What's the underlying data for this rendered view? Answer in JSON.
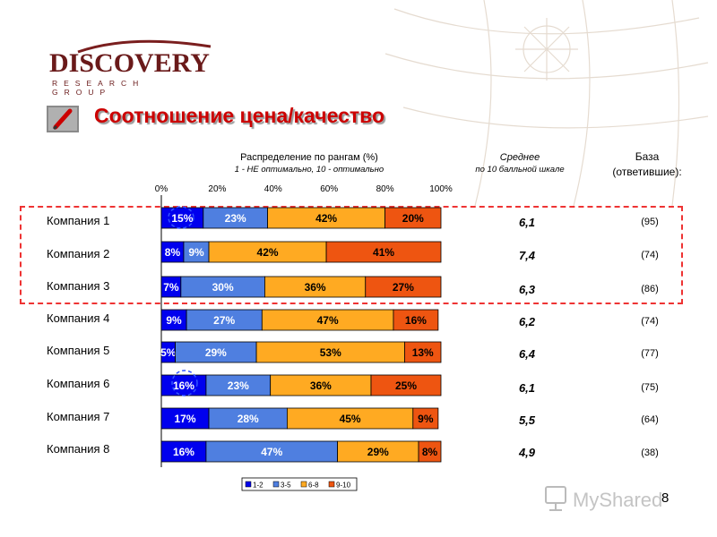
{
  "logo": {
    "word": "DISCOVERY",
    "sub": "RESEARCH GROUP"
  },
  "title": "Соотношение цена/качество",
  "header": {
    "dist_title": "Распределение по рангам (%)",
    "dist_sub": "1 - НЕ оптимально, 10 - оптимально",
    "avg_title": "Среднее",
    "avg_sub": "по 10 балльной шкале",
    "base_line1": "База",
    "base_line2": "(ответившие):"
  },
  "page_number": "8",
  "watermark": "MyShared",
  "colors": {
    "1-2": "#0000ee",
    "3-5": "#4f7fe0",
    "6-8": "#ffaa22",
    "9-10": "#ee5511",
    "highlight": "#ee3333",
    "title": "#cc0000"
  },
  "companies": [
    {
      "name": "Компания 1",
      "avg": "6,1",
      "base": "(95)"
    },
    {
      "name": "Компания 2",
      "avg": "7,4",
      "base": "(74)"
    },
    {
      "name": "Компания 3",
      "avg": "6,3",
      "base": "(86)"
    },
    {
      "name": "Компания 4",
      "avg": "6,2",
      "base": "(74)"
    },
    {
      "name": "Компания 5",
      "avg": "6,4",
      "base": "(77)"
    },
    {
      "name": "Компания 6",
      "avg": "6,1",
      "base": "(75)"
    },
    {
      "name": "Компания 7",
      "avg": "5,5",
      "base": "(64)"
    },
    {
      "name": "Компания 8",
      "avg": "4,9",
      "base": "(38)"
    }
  ],
  "chart_data": {
    "type": "bar",
    "orientation": "horizontal",
    "stacked": true,
    "categories": [
      "Компания 1",
      "Компания 2",
      "Компания 3",
      "Компания 4",
      "Компания 5",
      "Компания 6",
      "Компания 7",
      "Компания 8"
    ],
    "x_ticks": [
      "0%",
      "20%",
      "40%",
      "60%",
      "80%",
      "100%"
    ],
    "xlim": [
      0,
      100
    ],
    "legend_position": "bottom",
    "series": [
      {
        "name": "1-2",
        "values": [
          15,
          8,
          7,
          9,
          5,
          16,
          17,
          16
        ],
        "labels": [
          "15%",
          "8%",
          "7%",
          "9%",
          "5%",
          "16%",
          "17%",
          "16%"
        ]
      },
      {
        "name": "3-5",
        "values": [
          23,
          9,
          30,
          27,
          29,
          23,
          28,
          47
        ],
        "labels": [
          "23%",
          "9%",
          "30%",
          "27%",
          "29%",
          "23%",
          "28%",
          "47%"
        ]
      },
      {
        "name": "6-8",
        "values": [
          42,
          42,
          36,
          47,
          53,
          36,
          45,
          29
        ],
        "labels": [
          "42%",
          "42%",
          "36%",
          "47%",
          "53%",
          "36%",
          "45%",
          "29%"
        ]
      },
      {
        "name": "9-10",
        "values": [
          20,
          41,
          27,
          16,
          13,
          25,
          9,
          8
        ],
        "labels": [
          "20%",
          "41%",
          "27%",
          "16%",
          "13%",
          "25%",
          "9%",
          "8%"
        ]
      }
    ]
  }
}
